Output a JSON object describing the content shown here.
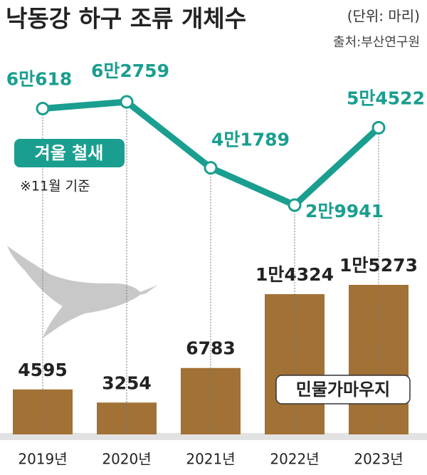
{
  "title": "낙동강 하구 조류 개체수",
  "unit": "(단위: 마리)",
  "source": "출처:부산연구원",
  "chart_data": {
    "type": "combo",
    "categories": [
      "2019년",
      "2020년",
      "2021년",
      "2022년",
      "2023년"
    ],
    "series": [
      {
        "name": "겨울 철새",
        "type": "line",
        "color": "#1a9e8f",
        "values": [
          60618,
          62759,
          41789,
          29941,
          54522
        ],
        "value_labels": [
          "6만618",
          "6만2759",
          "4만1789",
          "2만9941",
          "5만4522"
        ]
      },
      {
        "name": "민물가마우지",
        "type": "bar",
        "color": "#a27135",
        "values": [
          4595,
          3254,
          6783,
          14324,
          15273
        ],
        "value_labels": [
          "4595",
          "3254",
          "6783",
          "1만4324",
          "1만5273"
        ]
      }
    ],
    "annotation": "※11월 기준"
  }
}
